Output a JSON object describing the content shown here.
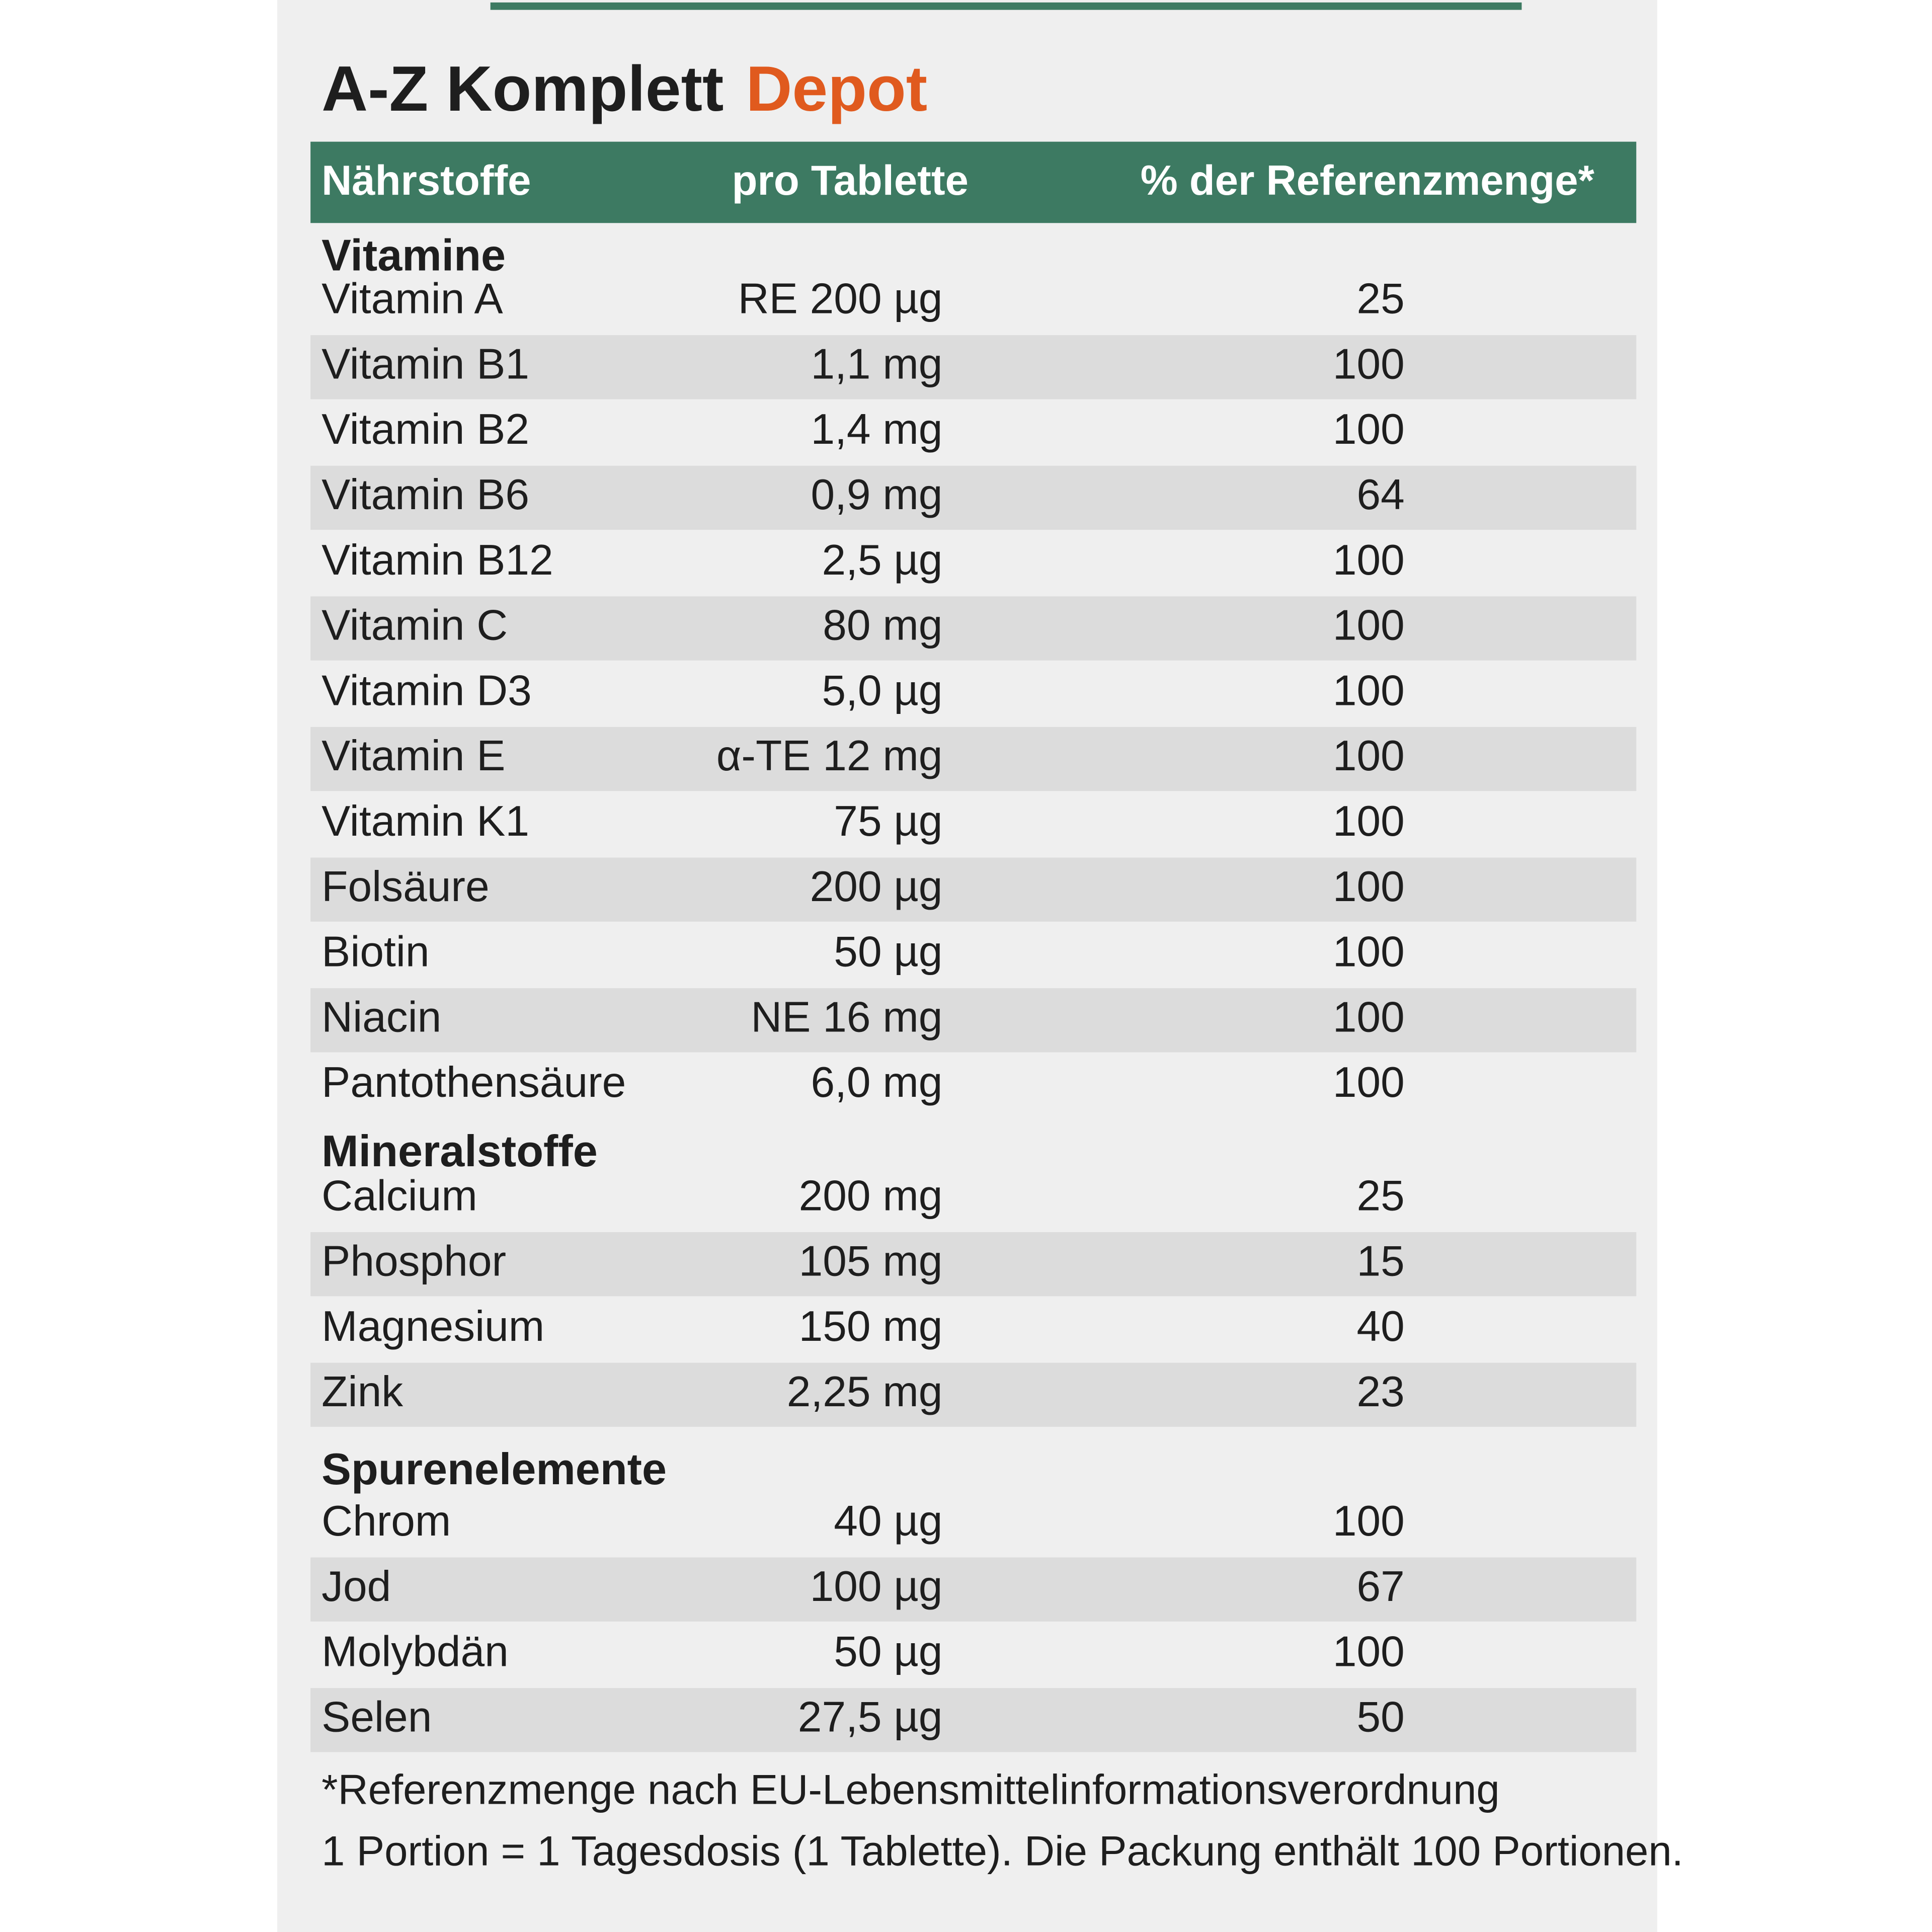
{
  "title": {
    "main": "A-Z Komplett",
    "accent": "Depot"
  },
  "table": {
    "header": [
      "Nährstoffe",
      "pro Tablette",
      "% der Referenzmenge*"
    ],
    "sections": [
      {
        "name": "Vitamine",
        "rows": [
          [
            "Vitamin A",
            "RE 200 µg",
            25
          ],
          [
            "Vitamin B1",
            "1,1 mg",
            100
          ],
          [
            "Vitamin B2",
            "1,4 mg",
            100
          ],
          [
            "Vitamin B6",
            "0,9 mg",
            64
          ],
          [
            "Vitamin B12",
            "2,5 µg",
            100
          ],
          [
            "Vitamin C",
            "80 mg",
            100
          ],
          [
            "Vitamin D3",
            "5,0 µg",
            100
          ],
          [
            "Vitamin E",
            "α-TE 12 mg",
            100
          ],
          [
            "Vitamin K1",
            "75 µg",
            100
          ],
          [
            "Folsäure",
            "200 µg",
            100
          ],
          [
            "Biotin",
            "50 µg",
            100
          ],
          [
            "Niacin",
            "NE 16 mg",
            100
          ],
          [
            "Pantothensäure",
            "6,0 mg",
            100
          ]
        ]
      },
      {
        "name": "Mineralstoffe",
        "rows": [
          [
            "Calcium",
            "200 mg",
            25
          ],
          [
            "Phosphor",
            "105 mg",
            15
          ],
          [
            "Magnesium",
            "150 mg",
            40
          ],
          [
            "Zink",
            "2,25 mg",
            23
          ]
        ]
      },
      {
        "name": "Spurenelemente",
        "rows": [
          [
            "Chrom",
            "40 µg",
            100
          ],
          [
            "Jod",
            "100 µg",
            67
          ],
          [
            "Molybdän",
            "50 µg",
            100
          ],
          [
            "Selen",
            "27,5 µg",
            50
          ]
        ]
      }
    ]
  },
  "footnotes": [
    "*Referenzmenge nach EU-Lebensmittelinformationsverordnung",
    "1 Portion = 1 Tagesdosis (1 Tablette). Die Packung enthält 100 Portionen."
  ]
}
